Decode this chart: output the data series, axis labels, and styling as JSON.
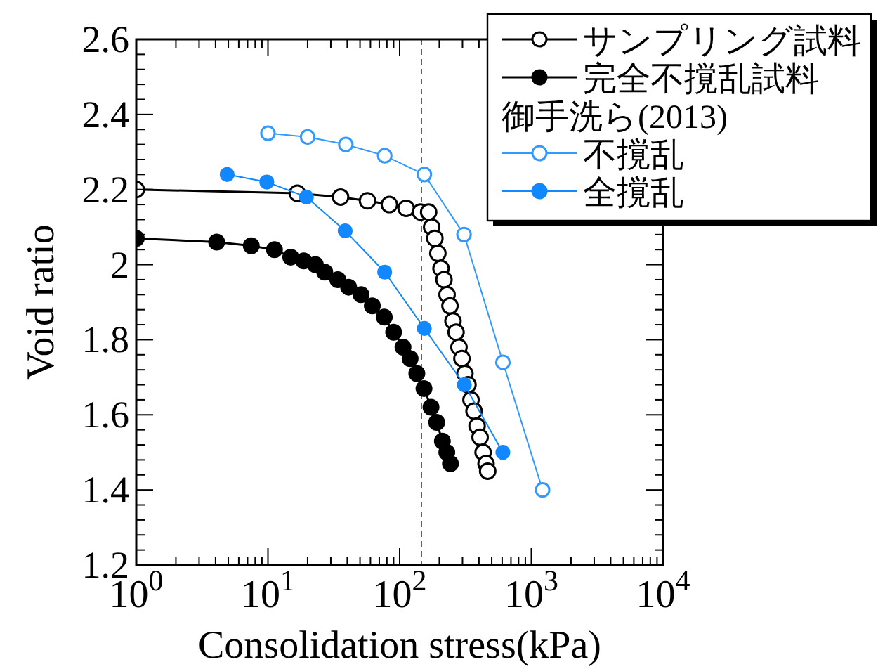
{
  "chart_data": {
    "type": "line",
    "xlabel": "Consolidation stress(kPa)",
    "ylabel": "Void ratio",
    "log": "x",
    "xlim": [
      1,
      10000
    ],
    "xticks": [
      {
        "value": 1,
        "label": "10$^{0}$"
      },
      {
        "value": 10,
        "label": "10$^{1}$"
      },
      {
        "value": 100,
        "label": "10$^{2}$"
      },
      {
        "value": 1000,
        "label": "10$^{3}$"
      },
      {
        "value": 10000,
        "label": "10$^{4}$"
      }
    ],
    "ylim": [
      1.2,
      2.6
    ],
    "yticks": [
      1.2,
      1.4,
      1.6,
      1.8,
      2,
      2.2,
      2.4,
      2.6
    ],
    "grid": false,
    "legend": "top right",
    "annotations": [
      "御手洗ら(2013)"
    ],
    "ref_lines": [
      {
        "axis": "x",
        "value": 146,
        "color": "#000000",
        "line_style": "dashed"
      }
    ],
    "series": [
      {
        "name": "サンプリング試料",
        "color": "#000000",
        "marker": "circle-open",
        "x": [
          1,
          16.7,
          35.6,
          57,
          83.5,
          112,
          144,
          166,
          175,
          185,
          195,
          206,
          217,
          229,
          241,
          254,
          268,
          282,
          297,
          313,
          330,
          348,
          367,
          387,
          408,
          430,
          453,
          466
        ],
        "values": [
          2.2,
          2.19,
          2.18,
          2.17,
          2.16,
          2.15,
          2.14,
          2.14,
          2.1,
          2.07,
          2.03,
          1.99,
          1.96,
          1.92,
          1.89,
          1.85,
          1.82,
          1.78,
          1.75,
          1.71,
          1.68,
          1.64,
          1.61,
          1.57,
          1.54,
          1.5,
          1.47,
          1.45
        ]
      },
      {
        "name": "完全不撹乱試料",
        "color": "#000000",
        "marker": "circle",
        "x": [
          1,
          4.08,
          7.47,
          11.2,
          14.9,
          18.7,
          22.9,
          27,
          33.9,
          41,
          50.9,
          62,
          76.4,
          90,
          106,
          120,
          135,
          153,
          173,
          191,
          211,
          228,
          243
        ],
        "values": [
          2.07,
          2.06,
          2.05,
          2.04,
          2.02,
          2.01,
          2,
          1.98,
          1.96,
          1.94,
          1.92,
          1.89,
          1.86,
          1.82,
          1.78,
          1.75,
          1.71,
          1.67,
          1.62,
          1.58,
          1.53,
          1.5,
          1.47
        ]
      },
      {
        "name": "不撹乱",
        "color": "#3399ff",
        "marker": "circle-open",
        "x": [
          10,
          20,
          39,
          77,
          154,
          308,
          608,
          1216
        ],
        "values": [
          2.35,
          2.34,
          2.32,
          2.29,
          2.24,
          2.08,
          1.74,
          1.4
        ]
      },
      {
        "name": "全撹乱",
        "color": "#1188ff",
        "marker": "circle",
        "x": [
          4.9,
          9.8,
          19.6,
          38.6,
          77,
          154,
          310,
          608
        ],
        "values": [
          2.24,
          2.22,
          2.18,
          2.09,
          1.98,
          1.83,
          1.68,
          1.5
        ]
      }
    ]
  }
}
